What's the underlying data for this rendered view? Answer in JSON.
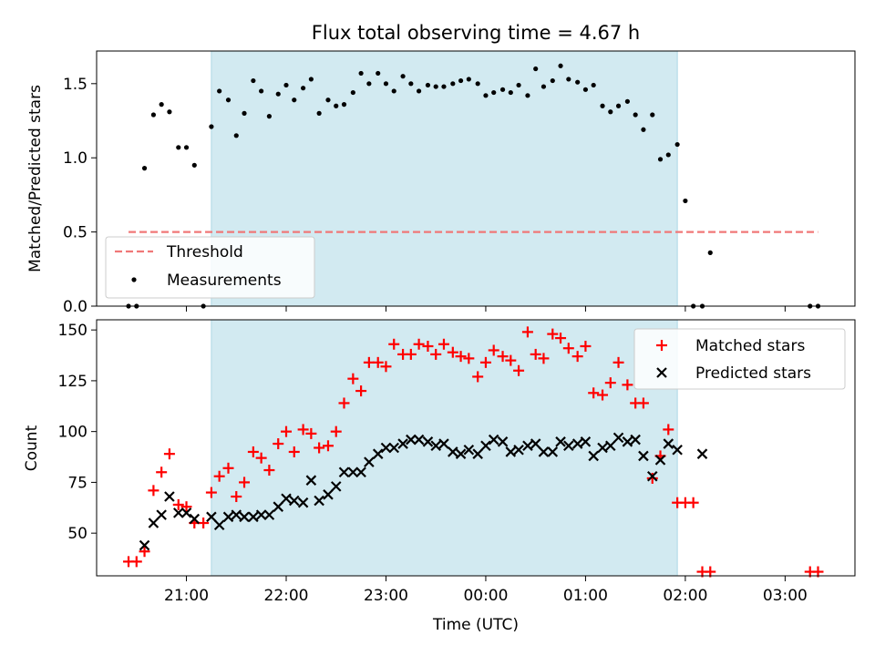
{
  "title": "Flux total observing time = 4.67 h",
  "colors": {
    "shade": "#add8e6",
    "threshold": "#f07878",
    "matched": "#ff0000",
    "predicted": "#000000",
    "measurement": "#000000"
  },
  "chart_data": [
    {
      "type": "scatter",
      "panel": "top",
      "ylabel": "Matched/Predicted stars",
      "x_unit": "hours since 00:00 UTC (negative = previous day)",
      "xlim": [
        -3.9,
        3.7
      ],
      "ylim": [
        0,
        1.72
      ],
      "yticks": [
        0.0,
        0.5,
        1.0,
        1.5
      ],
      "ytick_labels": [
        "0.0",
        "0.5",
        "1.0",
        "1.5"
      ],
      "shaded_interval": [
        -2.75,
        1.92
      ],
      "legend_position": "lower-left",
      "threshold": {
        "name": "Threshold",
        "value": 0.5,
        "x_range": [
          -3.58,
          3.33
        ]
      },
      "series": [
        {
          "name": "Measurements",
          "x": [
            -3.58,
            -3.5,
            -3.42,
            -3.33,
            -3.25,
            -3.17,
            -3.08,
            -3.0,
            -2.92,
            -2.83,
            -2.75,
            -2.67,
            -2.58,
            -2.5,
            -2.42,
            -2.33,
            -2.25,
            -2.17,
            -2.08,
            -2.0,
            -1.92,
            -1.83,
            -1.75,
            -1.67,
            -1.58,
            -1.5,
            -1.42,
            -1.33,
            -1.25,
            -1.17,
            -1.08,
            -1.0,
            -0.92,
            -0.83,
            -0.75,
            -0.67,
            -0.58,
            -0.5,
            -0.42,
            -0.33,
            -0.25,
            -0.17,
            -0.08,
            0.0,
            0.08,
            0.17,
            0.25,
            0.33,
            0.42,
            0.5,
            0.58,
            0.67,
            0.75,
            0.83,
            0.92,
            1.0,
            1.08,
            1.17,
            1.25,
            1.33,
            1.42,
            1.5,
            1.58,
            1.67,
            1.75,
            1.83,
            1.92,
            2.0,
            2.08,
            2.17,
            2.25,
            3.25,
            3.33
          ],
          "y": [
            0.0,
            0.0,
            0.93,
            1.29,
            1.36,
            1.31,
            1.07,
            1.07,
            0.95,
            0.0,
            1.21,
            1.45,
            1.39,
            1.15,
            1.3,
            1.52,
            1.45,
            1.28,
            1.43,
            1.49,
            1.39,
            1.47,
            1.53,
            1.3,
            1.39,
            1.35,
            1.36,
            1.44,
            1.57,
            1.5,
            1.57,
            1.5,
            1.45,
            1.55,
            1.5,
            1.45,
            1.49,
            1.48,
            1.48,
            1.5,
            1.52,
            1.53,
            1.5,
            1.42,
            1.44,
            1.46,
            1.44,
            1.49,
            1.42,
            1.6,
            1.48,
            1.52,
            1.62,
            1.53,
            1.51,
            1.46,
            1.49,
            1.35,
            1.31,
            1.35,
            1.38,
            1.29,
            1.19,
            1.29,
            0.99,
            1.02,
            1.09,
            0.71,
            0.0,
            0.0,
            0.36,
            0.0,
            0.0
          ]
        }
      ]
    },
    {
      "type": "scatter",
      "panel": "bottom",
      "xlabel": "Time (UTC)",
      "ylabel": "Count",
      "xlim": [
        -3.9,
        3.7
      ],
      "ylim": [
        29,
        155
      ],
      "yticks": [
        50,
        75,
        100,
        125,
        150
      ],
      "ytick_labels": [
        "50",
        "75",
        "100",
        "125",
        "150"
      ],
      "xticks": [
        -3,
        -2,
        -1,
        0,
        1,
        2,
        3
      ],
      "xtick_labels": [
        "21:00",
        "22:00",
        "23:00",
        "00:00",
        "01:00",
        "02:00",
        "03:00"
      ],
      "shaded_interval": [
        -2.75,
        1.92
      ],
      "legend_position": "upper-right",
      "series": [
        {
          "name": "Matched stars",
          "marker": "plus",
          "x": [
            -3.58,
            -3.5,
            -3.42,
            -3.33,
            -3.25,
            -3.17,
            -3.08,
            -3.0,
            -2.92,
            -2.83,
            -2.75,
            -2.67,
            -2.58,
            -2.5,
            -2.42,
            -2.33,
            -2.25,
            -2.17,
            -2.08,
            -2.0,
            -1.92,
            -1.83,
            -1.75,
            -1.67,
            -1.58,
            -1.5,
            -1.42,
            -1.33,
            -1.25,
            -1.17,
            -1.08,
            -1.0,
            -0.92,
            -0.83,
            -0.75,
            -0.67,
            -0.58,
            -0.5,
            -0.42,
            -0.33,
            -0.25,
            -0.17,
            -0.08,
            0.0,
            0.08,
            0.17,
            0.25,
            0.33,
            0.42,
            0.5,
            0.58,
            0.67,
            0.75,
            0.83,
            0.92,
            1.0,
            1.08,
            1.17,
            1.25,
            1.33,
            1.42,
            1.5,
            1.58,
            1.67,
            1.75,
            1.83,
            1.92,
            2.0,
            2.08,
            2.17,
            2.25,
            3.25,
            3.33
          ],
          "y": [
            36,
            36,
            41,
            71,
            80,
            89,
            64,
            63,
            55,
            55,
            70,
            78,
            82,
            68,
            75,
            90,
            87,
            81,
            94,
            100,
            90,
            101,
            99,
            92,
            93,
            100,
            114,
            126,
            120,
            134,
            134,
            132,
            143,
            138,
            138,
            143,
            142,
            138,
            143,
            139,
            137,
            136,
            127,
            134,
            140,
            137,
            135,
            130,
            149,
            138,
            136,
            148,
            146,
            141,
            137,
            142,
            119,
            118,
            124,
            134,
            123,
            114,
            114,
            77,
            88,
            101,
            65,
            65,
            65,
            31,
            31,
            31,
            31
          ]
        },
        {
          "name": "Predicted stars",
          "marker": "x",
          "x": [
            -3.42,
            -3.33,
            -3.25,
            -3.17,
            -3.08,
            -3.0,
            -2.92,
            -2.75,
            -2.67,
            -2.58,
            -2.5,
            -2.42,
            -2.33,
            -2.25,
            -2.17,
            -2.08,
            -2.0,
            -1.92,
            -1.83,
            -1.75,
            -1.67,
            -1.58,
            -1.5,
            -1.42,
            -1.33,
            -1.25,
            -1.17,
            -1.08,
            -1.0,
            -0.92,
            -0.83,
            -0.75,
            -0.67,
            -0.58,
            -0.5,
            -0.42,
            -0.33,
            -0.25,
            -0.17,
            -0.08,
            0.0,
            0.08,
            0.17,
            0.25,
            0.33,
            0.42,
            0.5,
            0.58,
            0.67,
            0.75,
            0.83,
            0.92,
            1.0,
            1.08,
            1.17,
            1.25,
            1.33,
            1.42,
            1.5,
            1.58,
            1.67,
            1.75,
            1.83,
            1.92,
            2.17
          ],
          "y": [
            44,
            55,
            59,
            68,
            60,
            60,
            57,
            58,
            54,
            58,
            59,
            58,
            58,
            59,
            59,
            63,
            67,
            66,
            65,
            76,
            66,
            69,
            73,
            80,
            80,
            80,
            85,
            89,
            92,
            92,
            94,
            96,
            96,
            95,
            93,
            94,
            90,
            89,
            91,
            89,
            93,
            96,
            95,
            90,
            91,
            93,
            94,
            90,
            90,
            95,
            93,
            94,
            95,
            88,
            92,
            93,
            97,
            95,
            96,
            88,
            78,
            86,
            94,
            91,
            89
          ]
        }
      ]
    }
  ]
}
